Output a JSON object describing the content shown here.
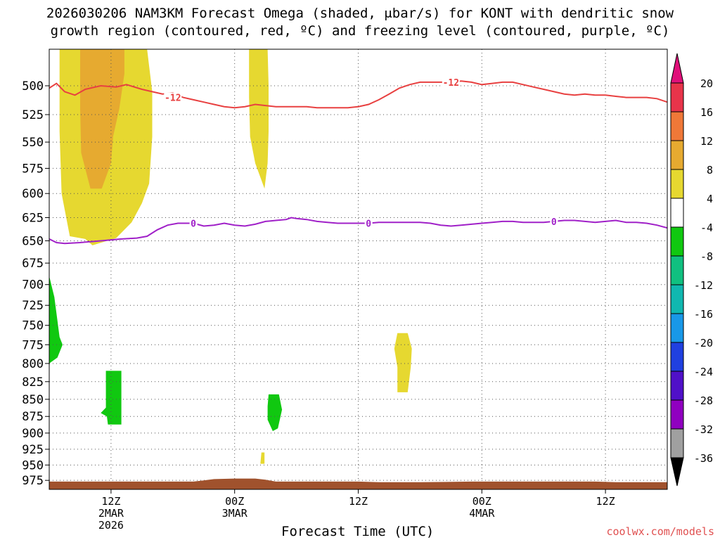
{
  "title": {
    "line1": "2026030206 NAM3KM Forecast Omega (shaded, μbar/s) for KONT with dendritic snow",
    "line2": "growth region (contoured, red, ºC) and freezing level (contoured, purple, ºC)"
  },
  "watermark": "coolwx.com/models",
  "chart_data": {
    "type": "heatmap",
    "xlabel": "Forecast Time (UTC)",
    "ylabel": "",
    "x_unit": "hours since 2026030206",
    "xlim": [
      0,
      60
    ],
    "ylim": [
      990,
      470
    ],
    "y_log": true,
    "grid": true,
    "y_ticks": [
      500,
      525,
      550,
      575,
      600,
      625,
      650,
      675,
      700,
      725,
      750,
      775,
      800,
      825,
      850,
      875,
      900,
      925,
      950,
      975
    ],
    "x_ticks": [
      {
        "x": 6,
        "lines": [
          "12Z",
          "2MAR",
          "2026"
        ]
      },
      {
        "x": 18,
        "lines": [
          "00Z",
          "3MAR"
        ]
      },
      {
        "x": 30,
        "lines": [
          "12Z"
        ]
      },
      {
        "x": 42,
        "lines": [
          "00Z",
          "4MAR"
        ]
      },
      {
        "x": 54,
        "lines": [
          "12Z"
        ]
      }
    ],
    "colorbar": {
      "levels": [
        20,
        16,
        12,
        8,
        4,
        -4,
        -8,
        -12,
        -16,
        -20,
        -24,
        -28,
        -32,
        -36
      ],
      "colors": [
        "#e8344a",
        "#f07838",
        "#e6aa30",
        "#e6d830",
        "#ffffff",
        "#10c810",
        "#10c080",
        "#10b8b0",
        "#1898e8",
        "#2040e0",
        "#5010c8",
        "#9000c0",
        "#a0a0a0"
      ],
      "top_color": "#e0107a",
      "bottom_color": "#000000"
    },
    "contours": [
      {
        "color": "#e84040",
        "labels": [
          {
            "x": 12,
            "y": 510,
            "text": "-12"
          },
          {
            "x": 39,
            "y": 497,
            "text": "-12"
          }
        ],
        "points": [
          [
            0,
            502
          ],
          [
            0.7,
            498
          ],
          [
            1.5,
            505
          ],
          [
            2.5,
            508
          ],
          [
            3.5,
            503
          ],
          [
            5,
            500
          ],
          [
            6.5,
            501
          ],
          [
            7.5,
            499
          ],
          [
            9,
            503
          ],
          [
            10,
            505
          ],
          [
            11,
            507
          ],
          [
            12,
            506
          ],
          [
            13,
            510
          ],
          [
            14,
            512
          ],
          [
            15,
            514
          ],
          [
            16,
            516
          ],
          [
            17,
            518
          ],
          [
            18,
            519
          ],
          [
            19,
            518
          ],
          [
            20,
            516
          ],
          [
            21,
            517
          ],
          [
            22,
            518
          ],
          [
            23,
            518
          ],
          [
            24,
            518
          ],
          [
            25,
            518
          ],
          [
            26,
            519
          ],
          [
            27,
            519
          ],
          [
            28,
            519
          ],
          [
            29,
            519
          ],
          [
            30,
            518
          ],
          [
            31,
            516
          ],
          [
            32,
            512
          ],
          [
            33,
            507
          ],
          [
            34,
            502
          ],
          [
            35,
            499
          ],
          [
            36,
            497
          ],
          [
            37,
            497
          ],
          [
            38,
            497
          ],
          [
            39,
            497
          ],
          [
            40,
            496
          ],
          [
            41,
            497
          ],
          [
            42,
            499
          ],
          [
            43,
            498
          ],
          [
            44,
            497
          ],
          [
            45,
            497
          ],
          [
            46,
            499
          ],
          [
            47,
            501
          ],
          [
            48,
            503
          ],
          [
            49,
            505
          ],
          [
            50,
            507
          ],
          [
            51,
            508
          ],
          [
            52,
            507
          ],
          [
            53,
            508
          ],
          [
            54,
            508
          ],
          [
            55,
            509
          ],
          [
            56,
            510
          ],
          [
            57,
            510
          ],
          [
            58,
            510
          ],
          [
            59,
            511
          ],
          [
            60,
            514
          ]
        ]
      },
      {
        "color": "#a020c8",
        "labels": [
          {
            "x": 14,
            "y": 631,
            "text": "0"
          },
          {
            "x": 31,
            "y": 631,
            "text": "0"
          },
          {
            "x": 49,
            "y": 629,
            "text": "0"
          }
        ],
        "points": [
          [
            0,
            648
          ],
          [
            0.7,
            652
          ],
          [
            1.5,
            653
          ],
          [
            3,
            652
          ],
          [
            5,
            650
          ],
          [
            7,
            648
          ],
          [
            8.5,
            647
          ],
          [
            9.5,
            645
          ],
          [
            10.5,
            638
          ],
          [
            11.5,
            633
          ],
          [
            12.5,
            631
          ],
          [
            13.5,
            631
          ],
          [
            14,
            631
          ],
          [
            15,
            634
          ],
          [
            16,
            633
          ],
          [
            17,
            631
          ],
          [
            18,
            633
          ],
          [
            19,
            634
          ],
          [
            20,
            632
          ],
          [
            21,
            629
          ],
          [
            22,
            628
          ],
          [
            23,
            627
          ],
          [
            23.5,
            625
          ],
          [
            24,
            626
          ],
          [
            25,
            627
          ],
          [
            26,
            629
          ],
          [
            27,
            630
          ],
          [
            28,
            631
          ],
          [
            29,
            631
          ],
          [
            30,
            631
          ],
          [
            31,
            631
          ],
          [
            32,
            630
          ],
          [
            33,
            630
          ],
          [
            34,
            630
          ],
          [
            35,
            630
          ],
          [
            36,
            630
          ],
          [
            37,
            631
          ],
          [
            38,
            633
          ],
          [
            39,
            634
          ],
          [
            40,
            633
          ],
          [
            41,
            632
          ],
          [
            42,
            631
          ],
          [
            43,
            630
          ],
          [
            44,
            629
          ],
          [
            45,
            629
          ],
          [
            46,
            630
          ],
          [
            47,
            630
          ],
          [
            48,
            630
          ],
          [
            49,
            629
          ],
          [
            50,
            628
          ],
          [
            51,
            628
          ],
          [
            52,
            629
          ],
          [
            53,
            630
          ],
          [
            54,
            629
          ],
          [
            55,
            628
          ],
          [
            56,
            630
          ],
          [
            57,
            630
          ],
          [
            58,
            631
          ],
          [
            59,
            633
          ],
          [
            60,
            636
          ]
        ]
      }
    ],
    "terrain": {
      "color": "#a0522d",
      "points": [
        [
          0,
          977
        ],
        [
          5,
          977
        ],
        [
          10,
          977
        ],
        [
          14,
          977
        ],
        [
          15,
          975
        ],
        [
          16,
          973
        ],
        [
          18,
          972
        ],
        [
          20,
          972
        ],
        [
          21,
          974
        ],
        [
          22,
          977
        ],
        [
          26,
          977
        ],
        [
          30,
          977
        ],
        [
          32,
          978
        ],
        [
          36,
          978
        ],
        [
          41,
          977
        ],
        [
          44,
          977
        ],
        [
          48,
          977
        ],
        [
          53,
          977
        ],
        [
          55,
          978
        ],
        [
          60,
          978
        ]
      ]
    },
    "shaded_regions": [
      {
        "value": 5,
        "color": "#e6d830",
        "points": [
          [
            1,
            470
          ],
          [
            9.5,
            470
          ],
          [
            10,
            505
          ],
          [
            10,
            545
          ],
          [
            9.7,
            590
          ],
          [
            9,
            610
          ],
          [
            8,
            630
          ],
          [
            6.5,
            647
          ],
          [
            4.2,
            655
          ],
          [
            3.5,
            648
          ],
          [
            2,
            645
          ],
          [
            1.2,
            600
          ],
          [
            1,
            540
          ]
        ]
      },
      {
        "value": 9,
        "color": "#e6aa30",
        "points": [
          [
            3,
            470
          ],
          [
            7.3,
            470
          ],
          [
            7.3,
            490
          ],
          [
            6.8,
            520
          ],
          [
            6.2,
            545
          ],
          [
            6,
            570
          ],
          [
            5.1,
            595
          ],
          [
            4,
            595
          ],
          [
            3.1,
            560
          ],
          [
            3,
            520
          ]
        ]
      },
      {
        "value": 5,
        "color": "#e6d830",
        "points": [
          [
            19.4,
            470
          ],
          [
            21.2,
            470
          ],
          [
            21.3,
            500
          ],
          [
            21.3,
            540
          ],
          [
            21.2,
            570
          ],
          [
            20.9,
            595
          ],
          [
            20,
            570
          ],
          [
            19.5,
            545
          ],
          [
            19.4,
            510
          ]
        ]
      },
      {
        "value": 5,
        "color": "#e6d830",
        "points": [
          [
            33.8,
            760
          ],
          [
            34.8,
            760
          ],
          [
            35.2,
            780
          ],
          [
            35.1,
            805
          ],
          [
            34.8,
            840
          ],
          [
            33.8,
            840
          ],
          [
            33.8,
            805
          ],
          [
            33.5,
            780
          ]
        ]
      },
      {
        "value": 5,
        "color": "#e6d830",
        "points": [
          [
            20.6,
            930
          ],
          [
            20.9,
            930
          ],
          [
            20.9,
            948
          ],
          [
            20.5,
            948
          ]
        ]
      },
      {
        "value": -5,
        "color": "#10c810",
        "points": [
          [
            0,
            690
          ],
          [
            0.5,
            715
          ],
          [
            1,
            765
          ],
          [
            1.3,
            775
          ],
          [
            0.8,
            792
          ],
          [
            0,
            800
          ]
        ]
      },
      {
        "value": -5,
        "color": "#10c810",
        "points": [
          [
            5.5,
            810
          ],
          [
            7,
            810
          ],
          [
            7,
            887
          ],
          [
            5.7,
            887
          ],
          [
            5.6,
            875
          ],
          [
            5,
            870
          ],
          [
            5.5,
            862
          ],
          [
            5.5,
            845
          ]
        ]
      },
      {
        "value": -5,
        "color": "#10c810",
        "points": [
          [
            21.3,
            843
          ],
          [
            22.3,
            843
          ],
          [
            22.6,
            865
          ],
          [
            22.2,
            893
          ],
          [
            21.7,
            897
          ],
          [
            21.2,
            880
          ],
          [
            21.2,
            860
          ]
        ]
      }
    ]
  }
}
